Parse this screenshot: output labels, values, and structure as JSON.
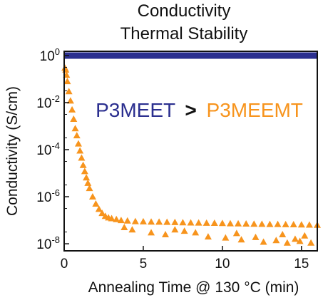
{
  "chart_data": {
    "type": "scatter",
    "title_lines": [
      "Conductivity",
      "Thermal Stability"
    ],
    "xlabel": "Annealing Time @ 130 °C (min)",
    "ylabel": "Conductivity (S/cm)",
    "xlim": [
      0,
      16
    ],
    "ylim": [
      5e-09,
      1.5
    ],
    "y_scale": "log",
    "x_ticks": [
      0,
      5,
      10,
      15
    ],
    "y_ticks": [
      1,
      0.01,
      0.0001,
      1e-06,
      1e-08
    ],
    "y_tick_labels": [
      {
        "base": "10",
        "exp": "0"
      },
      {
        "base": "10",
        "exp": "-2"
      },
      {
        "base": "10",
        "exp": "-4"
      },
      {
        "base": "10",
        "exp": "-6"
      },
      {
        "base": "10",
        "exp": "-8"
      }
    ],
    "grid": false,
    "annotation": {
      "left": "P3MEET",
      "op": ">",
      "right": "P3MEEMT"
    },
    "series": [
      {
        "color": "#2b2f8f",
        "marker": "line",
        "x": [
          0,
          16
        ],
        "y": [
          1.0,
          1.0
        ]
      },
      {
        "color": "#f7941d",
        "marker": "triangle",
        "x": [
          0.05,
          0.1,
          0.15,
          0.2,
          0.3,
          0.4,
          0.5,
          0.6,
          0.7,
          0.8,
          0.9,
          1.0,
          1.1,
          1.2,
          1.3,
          1.4,
          1.5,
          1.6,
          1.8,
          2.0,
          2.2,
          2.4,
          2.6,
          2.8,
          3.0,
          3.3,
          3.6,
          4.0,
          4.5,
          5.0,
          5.5,
          6.0,
          6.5,
          7.0,
          7.5,
          8.0,
          8.5,
          9.0,
          9.5,
          10.0,
          10.5,
          11.0,
          11.5,
          12.0,
          12.5,
          13.0,
          13.5,
          14.0,
          14.5,
          15.0,
          15.5,
          16.0,
          4.3,
          5.5,
          6.4,
          7.6,
          9.1,
          10.2,
          11.2,
          12.6,
          13.4,
          14.1,
          14.9,
          15.6,
          13.8,
          10.9,
          15.2,
          8.3,
          12.1,
          3.8,
          7.0,
          14.6
        ],
        "y": [
          0.3,
          0.25,
          0.15,
          0.08,
          0.03,
          0.012,
          0.005,
          0.002,
          0.0008,
          0.0004,
          0.00018,
          9e-05,
          4.5e-05,
          2.2e-05,
          1.2e-05,
          6.5e-06,
          3.8e-06,
          2.3e-06,
          1e-06,
          5e-07,
          3e-07,
          2e-07,
          1.5e-07,
          1.3e-07,
          1.2e-07,
          1.1e-07,
          1e-07,
          9.5e-08,
          9e-08,
          8.8e-08,
          8.6e-08,
          8.5e-08,
          8.4e-08,
          8.2e-08,
          8e-08,
          7.9e-08,
          7.8e-08,
          7.7e-08,
          7.6e-08,
          7.5e-08,
          7.3e-08,
          7.2e-08,
          7.1e-08,
          7e-08,
          6.9e-08,
          6.8e-08,
          6.8e-08,
          6.7e-08,
          6.6e-08,
          6.5e-08,
          6.4e-08,
          6.3e-08,
          4e-08,
          3e-08,
          2.5e-08,
          3.5e-08,
          2e-08,
          1.8e-08,
          1.5e-08,
          1.2e-08,
          1.4e-08,
          1.1e-08,
          1.3e-08,
          1.1e-08,
          2.5e-08,
          2.8e-08,
          2.2e-08,
          3e-08,
          1.9e-08,
          5e-08,
          4e-08,
          1.6e-08
        ]
      }
    ]
  },
  "colors": {
    "line_series": "#2b2f8f",
    "scatter_series": "#f7941d",
    "axis": "#111111"
  }
}
